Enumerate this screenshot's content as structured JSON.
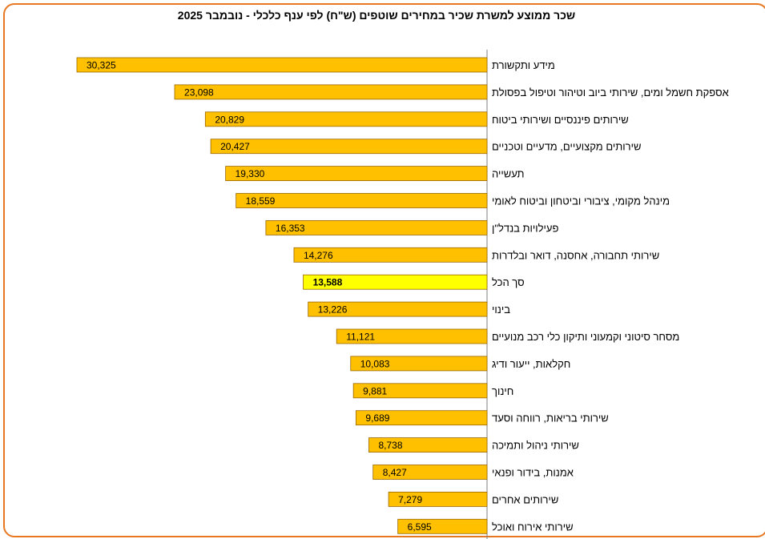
{
  "chart_data": {
    "type": "bar",
    "orientation": "horizontal",
    "title": "שכר ממוצע למשרת שכיר במחירים שוטפים (ש\"ח) לפי ענף כלכלי - נובמבר 2025",
    "xlim": [
      0,
      32000
    ],
    "grid": false,
    "legend": "none",
    "bar_color": "#ffc000",
    "highlight_color": "#ffff00",
    "bar_border": "#996600",
    "frame_color": "#e87722",
    "categories": [
      "מידע ותקשורת",
      "אספקת חשמל ומים, שירותי ביוב וטיהור וטיפול בפסולת",
      "שירותים פיננסיים ושירותי ביטוח",
      "שירותים מקצועיים, מדעיים וטכניים",
      "תעשייה",
      "מינהל מקומי, ציבורי וביטחון וביטוח לאומי",
      "פעילויות בנדל\"ן",
      "שירותי תחבורה, אחסנה, דואר ובלדרות",
      "סך הכל",
      "בינוי",
      "מסחר סיטוני וקמעוני ותיקון כלי רכב מנועיים",
      "חקלאות, ייעור ודיג",
      "חינוך",
      "שירותי בריאות, רווחה וסעד",
      "שירותי ניהול ותמיכה",
      "אמנות, בידור ופנאי",
      "שירותים אחרים",
      "שירותי אירוח ואוכל"
    ],
    "values": [
      30325,
      23098,
      20829,
      20427,
      19330,
      18559,
      16353,
      14276,
      13588,
      13226,
      11121,
      10083,
      9881,
      9689,
      8738,
      8427,
      7279,
      6595
    ],
    "value_labels": [
      "30,325",
      "23,098",
      "20,829",
      "20,427",
      "19,330",
      "18,559",
      "16,353",
      "14,276",
      "13,588",
      "13,226",
      "11,121",
      "10,083",
      "9,881",
      "9,689",
      "8,738",
      "8,427",
      "7,279",
      "6,595"
    ],
    "highlight": "סך הכל"
  }
}
